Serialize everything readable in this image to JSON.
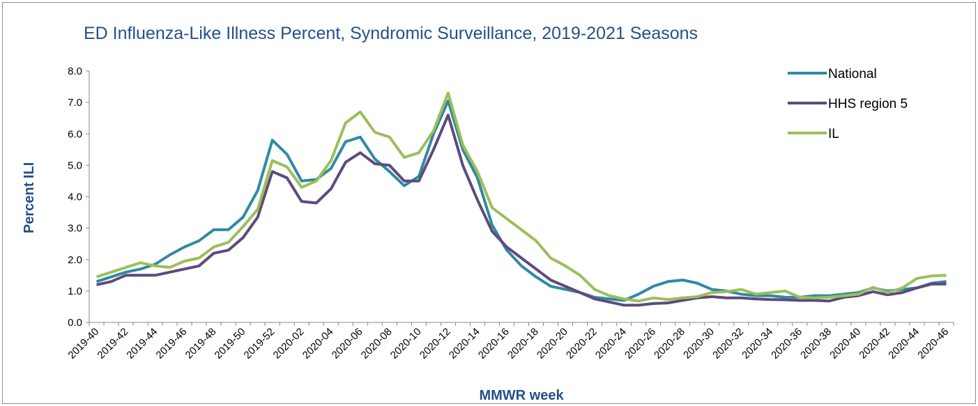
{
  "chart_data": {
    "type": "line",
    "title": "ED Influenza-Like Illness Percent, Syndromic Surveillance, 2019-2021 Seasons",
    "x_label": "MMWR week",
    "y_label": "Percent ILI",
    "categories": [
      "2019-40",
      null,
      "2019-42",
      null,
      "2019-44",
      null,
      "2019-46",
      null,
      "2019-48",
      null,
      "2019-50",
      null,
      "2019-52",
      null,
      "2020-02",
      null,
      "2020-04",
      null,
      "2020-06",
      null,
      "2020-08",
      null,
      "2020-10",
      null,
      "2020-12",
      null,
      "2020-14",
      null,
      "2020-16",
      null,
      "2020-18",
      null,
      "2020-20",
      null,
      "2020-22",
      null,
      "2020-24",
      null,
      "2020-26",
      null,
      "2020-28",
      null,
      "2020-30",
      null,
      "2020-32",
      null,
      "2020-34",
      null,
      "2020-36",
      null,
      "2020-38",
      null,
      "2020-40",
      null,
      "2020-42",
      null,
      "2020-44",
      null,
      "2020-46"
    ],
    "series": [
      {
        "name": "National",
        "color": "#2f8aa3",
        "values": [
          1.3,
          1.45,
          1.6,
          1.7,
          1.85,
          2.15,
          2.4,
          2.6,
          2.95,
          2.95,
          3.35,
          4.2,
          5.8,
          5.35,
          4.5,
          4.55,
          4.9,
          5.75,
          5.9,
          5.2,
          4.8,
          4.35,
          4.65,
          6.0,
          7.05,
          5.5,
          4.6,
          3.1,
          2.3,
          1.8,
          1.45,
          1.15,
          1.05,
          0.95,
          0.8,
          0.75,
          0.7,
          0.9,
          1.15,
          1.3,
          1.35,
          1.25,
          1.05,
          1.0,
          0.9,
          0.85,
          0.85,
          0.8,
          0.8,
          0.85,
          0.85,
          0.9,
          0.95,
          1.1,
          1.0,
          1.05,
          1.1,
          1.25,
          1.3
        ]
      },
      {
        "name": "HHS region 5",
        "color": "#5e4a7c",
        "values": [
          1.2,
          1.3,
          1.5,
          1.5,
          1.5,
          1.6,
          1.7,
          1.8,
          2.2,
          2.3,
          2.7,
          3.35,
          4.8,
          4.6,
          3.85,
          3.8,
          4.25,
          5.1,
          5.4,
          5.05,
          5.0,
          4.5,
          4.5,
          5.5,
          6.6,
          5.0,
          3.9,
          2.9,
          2.4,
          2.05,
          1.7,
          1.35,
          1.15,
          0.95,
          0.75,
          0.65,
          0.55,
          0.55,
          0.6,
          0.62,
          0.7,
          0.78,
          0.82,
          0.78,
          0.78,
          0.75,
          0.73,
          0.72,
          0.7,
          0.7,
          0.68,
          0.8,
          0.85,
          0.98,
          0.88,
          0.95,
          1.1,
          1.22,
          1.22
        ]
      },
      {
        "name": "IL",
        "color": "#9bbf5a",
        "values": [
          1.45,
          1.6,
          1.75,
          1.9,
          1.8,
          1.75,
          1.95,
          2.05,
          2.4,
          2.55,
          3.05,
          3.6,
          5.15,
          4.95,
          4.3,
          4.5,
          5.15,
          6.35,
          6.7,
          6.05,
          5.9,
          5.25,
          5.4,
          6.1,
          7.3,
          5.65,
          4.8,
          3.65,
          3.3,
          2.95,
          2.6,
          2.05,
          1.8,
          1.5,
          1.05,
          0.85,
          0.75,
          0.68,
          0.78,
          0.73,
          0.78,
          0.82,
          0.95,
          0.98,
          1.05,
          0.9,
          0.95,
          1.0,
          0.8,
          0.78,
          0.8,
          0.85,
          0.9,
          1.12,
          0.95,
          1.1,
          1.4,
          1.48,
          1.5
        ]
      }
    ],
    "ylim": [
      0,
      8
    ],
    "yticks": [
      {
        "value": 0,
        "label": "0.0"
      },
      {
        "value": 1,
        "label": "1.0"
      },
      {
        "value": 2,
        "label": "2.0"
      },
      {
        "value": 3,
        "label": "3.0"
      },
      {
        "value": 4,
        "label": "4.0"
      },
      {
        "value": 5,
        "label": "5.0"
      },
      {
        "value": 6,
        "label": "6.0"
      },
      {
        "value": 7,
        "label": "7.0"
      },
      {
        "value": 8,
        "label": "8.0"
      }
    ],
    "grid": false,
    "legend": "top-right"
  }
}
